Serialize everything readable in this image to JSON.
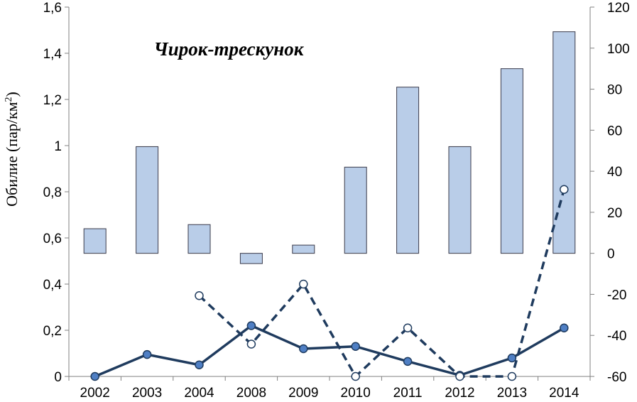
{
  "chart_data": {
    "type": "bar+line",
    "title": "Чирок-трескунок",
    "ylabel": "Обилие (пар/км",
    "ylabel_superscript": "2",
    "ylabel_suffix": ")",
    "categories": [
      "2002",
      "2003",
      "2004",
      "2008",
      "2009",
      "2010",
      "2011",
      "2012",
      "2013",
      "2014"
    ],
    "y_left": {
      "lim": [
        0,
        1.6
      ],
      "ticks": [
        "0",
        "0,2",
        "0,4",
        "0,6",
        "0,8",
        "1",
        "1,2",
        "1,4",
        "1,6"
      ]
    },
    "y_right": {
      "lim": [
        -60,
        120
      ],
      "ticks": [
        "-60",
        "-40",
        "-20",
        "0",
        "20",
        "40",
        "60",
        "80",
        "100",
        "120"
      ]
    },
    "grid": false,
    "legend": "none",
    "series": [
      {
        "kind": "bar",
        "axis": "right",
        "color": "#b9cde8",
        "edge": "#3a3a4a",
        "values": [
          12,
          52,
          14,
          -5,
          4,
          42,
          81,
          52,
          90,
          108
        ]
      },
      {
        "kind": "line-solid",
        "axis": "left",
        "color": "#1f3b5e",
        "marker": "#4f7fc4",
        "values": [
          0,
          0.095,
          0.05,
          0.22,
          0.12,
          0.13,
          0.065,
          0.005,
          0.08,
          0.21
        ]
      },
      {
        "kind": "line-dashed",
        "axis": "left",
        "color": "#1f3b5e",
        "marker": "#ffffff",
        "values": [
          null,
          null,
          0.35,
          0.14,
          0.4,
          0,
          0.21,
          0,
          0,
          0.81
        ]
      }
    ]
  }
}
